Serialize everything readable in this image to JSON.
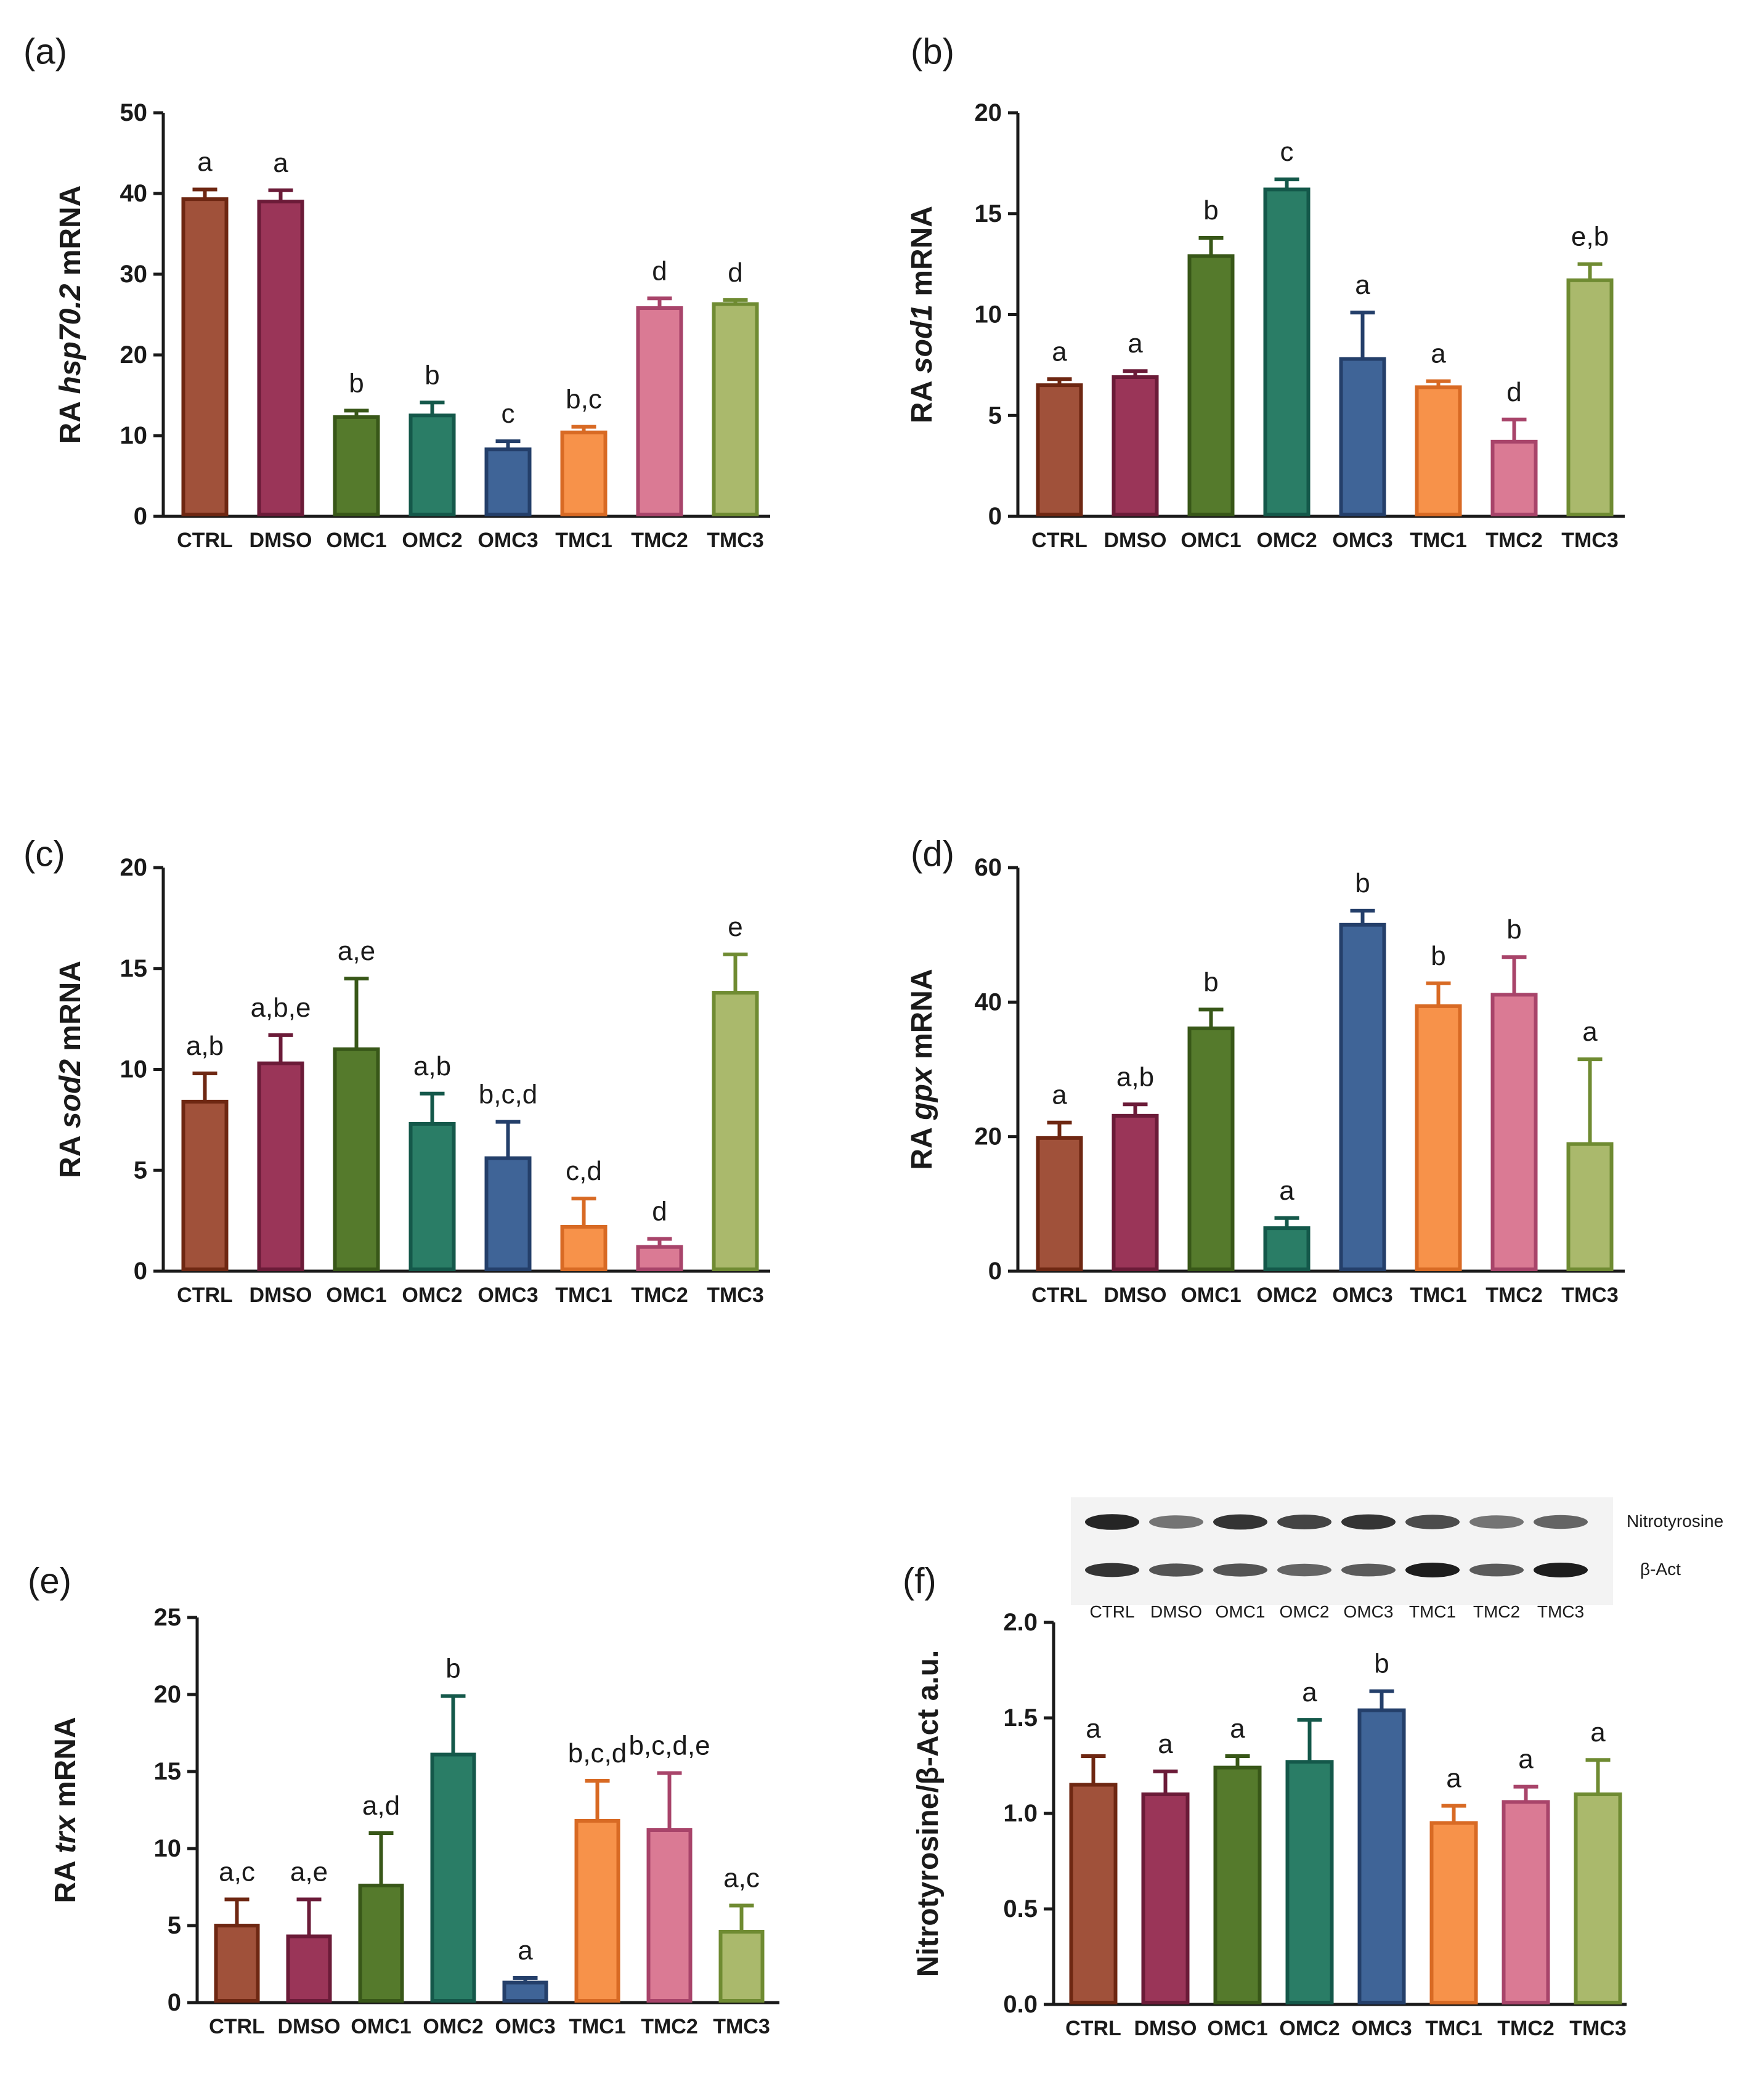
{
  "colors": {
    "CTRL": {
      "fill": "#a0513a",
      "stroke": "#6e2712"
    },
    "DMSO": {
      "fill": "#9a3558",
      "stroke": "#6b1b38"
    },
    "OMC1": {
      "fill": "#557a2c",
      "stroke": "#385718"
    },
    "OMC2": {
      "fill": "#2a7d66",
      "stroke": "#14584a"
    },
    "OMC3": {
      "fill": "#3f6497",
      "stroke": "#243f6a"
    },
    "TMC1": {
      "fill": "#f7924a",
      "stroke": "#d86a24"
    },
    "TMC2": {
      "fill": "#da7a94",
      "stroke": "#a8446a"
    },
    "TMC3": {
      "fill": "#aab96c",
      "stroke": "#6f8b32"
    }
  },
  "chart_data": [
    {
      "id": "a",
      "panel_label": "(a)",
      "type": "bar",
      "ylabel_pre": "RA ",
      "ylabel_italic": "hsp70.2",
      "ylabel_post": " mRNA",
      "ylim": [
        0,
        50
      ],
      "yticks": [
        "0",
        "10",
        "20",
        "30",
        "40",
        "50"
      ],
      "categories": [
        "CTRL",
        "DMSO",
        "OMC1",
        "OMC2",
        "OMC3",
        "TMC1",
        "TMC2",
        "TMC3"
      ],
      "values": [
        39.3,
        39.0,
        12.3,
        12.5,
        8.3,
        10.4,
        25.8,
        26.3
      ],
      "errors": [
        1.2,
        1.4,
        0.8,
        1.6,
        1.0,
        0.7,
        1.2,
        0.5
      ],
      "letters": [
        "a",
        "a",
        "b",
        "b",
        "c",
        "b,c",
        "d",
        "d"
      ]
    },
    {
      "id": "b",
      "panel_label": "(b)",
      "type": "bar",
      "ylabel_pre": "RA ",
      "ylabel_italic": "sod1",
      "ylabel_post": " mRNA",
      "ylim": [
        0,
        20
      ],
      "yticks": [
        "0",
        "5",
        "10",
        "15",
        "20"
      ],
      "categories": [
        "CTRL",
        "DMSO",
        "OMC1",
        "OMC2",
        "OMC3",
        "TMC1",
        "TMC2",
        "TMC3"
      ],
      "values": [
        6.5,
        6.9,
        12.9,
        16.2,
        7.8,
        6.4,
        3.7,
        11.7
      ],
      "errors": [
        0.3,
        0.3,
        0.9,
        0.5,
        2.3,
        0.3,
        1.1,
        0.8
      ],
      "letters": [
        "a",
        "a",
        "b",
        "c",
        "a",
        "a",
        "d",
        "e,b"
      ]
    },
    {
      "id": "c",
      "panel_label": "(c)",
      "type": "bar",
      "ylabel_pre": "RA ",
      "ylabel_italic": "sod2",
      "ylabel_post": " mRNA",
      "ylim": [
        0,
        20
      ],
      "yticks": [
        "0",
        "5",
        "10",
        "15",
        "20"
      ],
      "categories": [
        "CTRL",
        "DMSO",
        "OMC1",
        "OMC2",
        "OMC3",
        "TMC1",
        "TMC2",
        "TMC3"
      ],
      "values": [
        8.4,
        10.3,
        11.0,
        7.3,
        5.6,
        2.2,
        1.2,
        13.8
      ],
      "errors": [
        1.4,
        1.4,
        3.5,
        1.5,
        1.8,
        1.4,
        0.4,
        1.9
      ],
      "letters": [
        "a,b",
        "a,b,e",
        "a,e",
        "a,b",
        "b,c,d",
        "c,d",
        "d",
        "e"
      ]
    },
    {
      "id": "d",
      "panel_label": "(d)",
      "type": "bar",
      "ylabel_pre": "RA ",
      "ylabel_italic": "gpx",
      "ylabel_post": " mRNA",
      "ylim": [
        0,
        60
      ],
      "yticks": [
        "0",
        "20",
        "40",
        "60"
      ],
      "categories": [
        "CTRL",
        "DMSO",
        "OMC1",
        "OMC2",
        "OMC3",
        "TMC1",
        "TMC2",
        "TMC3"
      ],
      "values": [
        19.8,
        23.1,
        36.1,
        6.4,
        51.5,
        39.4,
        41.1,
        18.9
      ],
      "errors": [
        2.3,
        1.7,
        2.8,
        1.5,
        2.1,
        3.4,
        5.6,
        12.6
      ],
      "letters": [
        "a",
        "a,b",
        "b",
        "a",
        "b",
        "b",
        "b",
        "a"
      ]
    },
    {
      "id": "e",
      "panel_label": "(e)",
      "type": "bar",
      "ylabel_pre": "RA  ",
      "ylabel_italic": "trx",
      "ylabel_post": " mRNA",
      "ylim": [
        0,
        25
      ],
      "yticks": [
        "0",
        "5",
        "10",
        "15",
        "20",
        "25"
      ],
      "categories": [
        "CTRL",
        "DMSO",
        "OMC1",
        "OMC2",
        "OMC3",
        "TMC1",
        "TMC2",
        "TMC3"
      ],
      "values": [
        5.0,
        4.3,
        7.6,
        16.1,
        1.3,
        11.8,
        11.2,
        4.6
      ],
      "errors": [
        1.7,
        2.4,
        3.4,
        3.8,
        0.3,
        2.6,
        3.7,
        1.7
      ],
      "letters": [
        "a,c",
        "a,e",
        "a,d",
        "b",
        "a",
        "b,c,d",
        "b,c,d,e",
        "a,c"
      ]
    },
    {
      "id": "f",
      "panel_label": "(f)",
      "type": "bar",
      "ylabel_pre": "Nitrotyrosine/β-Act a.u.",
      "ylabel_italic": "",
      "ylabel_post": "",
      "ylim": [
        0,
        2
      ],
      "yticks": [
        "0.0",
        "0.5",
        "1.0",
        "1.5",
        "2.0"
      ],
      "categories": [
        "CTRL",
        "DMSO",
        "OMC1",
        "OMC2",
        "OMC3",
        "TMC1",
        "TMC2",
        "TMC3"
      ],
      "values": [
        1.15,
        1.1,
        1.24,
        1.27,
        1.54,
        0.95,
        1.06,
        1.1
      ],
      "errors": [
        0.15,
        0.12,
        0.06,
        0.22,
        0.1,
        0.09,
        0.08,
        0.18
      ],
      "letters": [
        "a",
        "a",
        "a",
        "a",
        "b",
        "a",
        "a",
        "a"
      ]
    }
  ],
  "blot": {
    "lanes": [
      "CTRL",
      "DMSO",
      "OMC1",
      "OMC2",
      "OMC3",
      "TMC1",
      "TMC2",
      "TMC3"
    ],
    "band1_label": "Nitrotyrosine",
    "band2_label": "β-Act"
  }
}
